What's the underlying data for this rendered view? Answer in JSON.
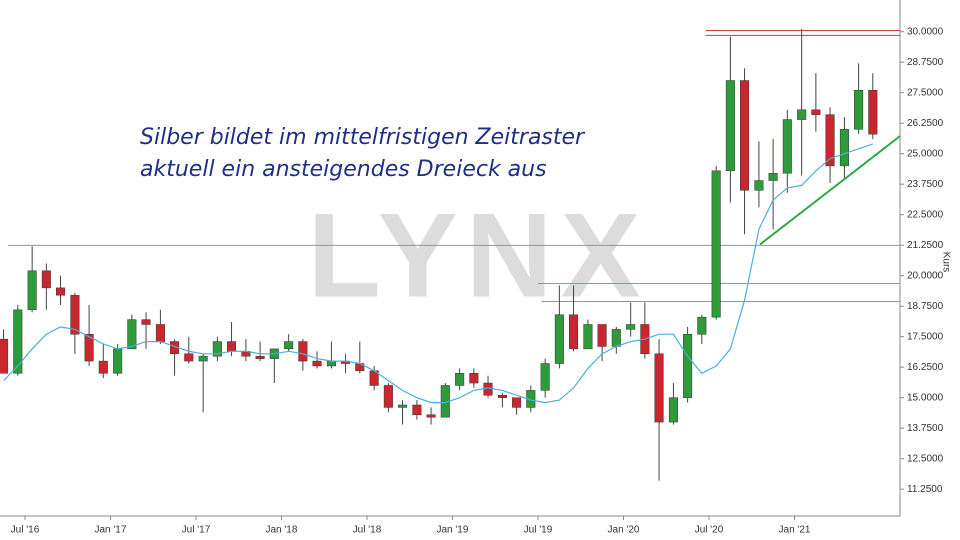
{
  "chart_data": {
    "type": "candlestick",
    "watermark": "LYNX",
    "annotation": [
      "Silber bildet im mittelfristigen Zeitraster",
      "aktuell ein ansteigendes Dreieck aus"
    ],
    "y_label": "Kurs",
    "ylim": [
      10.15,
      31.3
    ],
    "xlim": [
      2016.354,
      2021.617
    ],
    "yticks": [
      {
        "value": 11.25,
        "label": "11.2500"
      },
      {
        "value": 12.5,
        "label": "12.5000"
      },
      {
        "value": 13.75,
        "label": "13.7500"
      },
      {
        "value": 15,
        "label": "15.0000"
      },
      {
        "value": 16.25,
        "label": "16.2500"
      },
      {
        "value": 17.5,
        "label": "17.5000"
      },
      {
        "value": 18.75,
        "label": "18.7500"
      },
      {
        "value": 20,
        "label": "20.0000"
      },
      {
        "value": 21.25,
        "label": "21.2500"
      },
      {
        "value": 22.5,
        "label": "22.5000"
      },
      {
        "value": 23.75,
        "label": "23.7500"
      },
      {
        "value": 25,
        "label": "25.0000"
      },
      {
        "value": 26.25,
        "label": "26.2500"
      },
      {
        "value": 27.5,
        "label": "27.5000"
      },
      {
        "value": 28.75,
        "label": "28.7500"
      },
      {
        "value": 30,
        "label": "30.0000"
      }
    ],
    "xticks": [
      {
        "value": 2016.5,
        "label": "Jul '16"
      },
      {
        "value": 2017.0,
        "label": "Jan '17"
      },
      {
        "value": 2017.5,
        "label": "Jul '17"
      },
      {
        "value": 2018.0,
        "label": "Jan '18"
      },
      {
        "value": 2018.5,
        "label": "Jul '18"
      },
      {
        "value": 2019.0,
        "label": "Jan '19"
      },
      {
        "value": 2019.5,
        "label": "Jul '19"
      },
      {
        "value": 2020.0,
        "label": "Jan '20"
      },
      {
        "value": 2020.5,
        "label": "Jul '20"
      },
      {
        "value": 2021.0,
        "label": "Jan '21"
      }
    ],
    "up_color": "#2e9b3a",
    "down_color": "#c8282d",
    "x": [
      2016.375,
      2016.458,
      2016.542,
      2016.625,
      2016.708,
      2016.792,
      2016.875,
      2016.958,
      2017.042,
      2017.125,
      2017.208,
      2017.292,
      2017.375,
      2017.458,
      2017.542,
      2017.625,
      2017.708,
      2017.792,
      2017.875,
      2017.958,
      2018.042,
      2018.125,
      2018.208,
      2018.292,
      2018.375,
      2018.458,
      2018.542,
      2018.625,
      2018.708,
      2018.792,
      2018.875,
      2018.958,
      2019.042,
      2019.125,
      2019.208,
      2019.292,
      2019.375,
      2019.458,
      2019.542,
      2019.625,
      2019.708,
      2019.792,
      2019.875,
      2019.958,
      2020.042,
      2020.125,
      2020.208,
      2020.292,
      2020.375,
      2020.458,
      2020.542,
      2020.625,
      2020.708,
      2020.792,
      2020.875,
      2020.958,
      2021.042,
      2021.125,
      2021.208,
      2021.292,
      2021.375,
      2021.458
    ],
    "open": [
      17.4,
      16.0,
      18.6,
      20.2,
      19.5,
      19.2,
      17.6,
      16.5,
      16.0,
      17.0,
      18.2,
      18.0,
      17.3,
      16.8,
      16.5,
      16.7,
      17.3,
      16.9,
      16.7,
      16.6,
      17.0,
      17.3,
      16.5,
      16.3,
      16.5,
      16.4,
      16.1,
      15.5,
      14.6,
      14.7,
      14.3,
      14.2,
      15.5,
      16.0,
      15.6,
      15.1,
      15.0,
      14.6,
      15.3,
      16.4,
      18.4,
      17.0,
      18.0,
      17.1,
      17.8,
      18.0,
      16.8,
      14.0,
      15.0,
      17.6,
      18.3,
      24.3,
      28.0,
      23.5,
      23.9,
      24.2,
      26.4,
      26.8,
      26.6,
      24.5,
      26.0,
      27.6
    ],
    "high": [
      17.8,
      18.8,
      21.2,
      20.5,
      20.0,
      19.3,
      18.8,
      17.2,
      17.2,
      18.4,
      18.5,
      18.6,
      17.4,
      17.5,
      16.8,
      17.5,
      18.1,
      17.4,
      17.3,
      17.0,
      17.6,
      17.4,
      16.9,
      17.3,
      16.8,
      17.3,
      16.3,
      15.6,
      14.9,
      14.9,
      14.6,
      15.6,
      16.2,
      16.2,
      15.9,
      15.2,
      15.0,
      15.5,
      16.6,
      19.6,
      19.6,
      18.2,
      18.0,
      17.9,
      18.9,
      18.9,
      17.4,
      15.6,
      17.9,
      18.4,
      24.5,
      29.8,
      28.5,
      25.5,
      25.6,
      26.8,
      30.1,
      28.3,
      26.9,
      26.5,
      28.7,
      28.3
    ],
    "low": [
      16.0,
      15.9,
      18.5,
      18.6,
      18.8,
      16.8,
      16.3,
      15.8,
      15.9,
      17.0,
      17.0,
      17.2,
      15.9,
      16.4,
      14.4,
      16.5,
      16.7,
      16.5,
      16.5,
      15.6,
      16.9,
      16.1,
      16.2,
      16.2,
      16.0,
      16.0,
      15.3,
      14.4,
      13.9,
      14.1,
      13.9,
      14.2,
      15.3,
      15.4,
      15.0,
      14.6,
      14.3,
      14.4,
      15.0,
      16.2,
      16.9,
      17.0,
      16.5,
      16.8,
      17.5,
      16.6,
      11.6,
      13.9,
      14.8,
      17.2,
      18.2,
      23.0,
      21.7,
      22.8,
      21.9,
      23.4,
      24.1,
      25.9,
      23.8,
      24.0,
      25.8,
      25.6
    ],
    "close": [
      16.0,
      18.6,
      20.2,
      19.5,
      19.2,
      17.6,
      16.5,
      16.0,
      17.0,
      18.2,
      18.0,
      17.3,
      16.8,
      16.5,
      16.7,
      17.3,
      16.9,
      16.7,
      16.6,
      17.0,
      17.3,
      16.5,
      16.3,
      16.5,
      16.4,
      16.1,
      15.5,
      14.6,
      14.7,
      14.3,
      14.2,
      15.5,
      16.0,
      15.6,
      15.1,
      15.0,
      14.6,
      15.3,
      16.4,
      18.4,
      17.0,
      18.0,
      17.1,
      17.8,
      18.0,
      16.8,
      14.0,
      15.0,
      17.6,
      18.3,
      24.3,
      28.0,
      23.5,
      23.9,
      24.2,
      26.4,
      26.8,
      26.6,
      24.5,
      26.0,
      27.6,
      25.8
    ],
    "moving_average": {
      "color": "#49aee0",
      "values": [
        15.7,
        16.3,
        17.0,
        17.6,
        17.9,
        17.8,
        17.5,
        17.2,
        17.0,
        17.1,
        17.3,
        17.3,
        17.1,
        16.9,
        16.8,
        16.8,
        16.9,
        16.9,
        16.8,
        16.8,
        16.9,
        16.8,
        16.6,
        16.5,
        16.5,
        16.4,
        16.1,
        15.7,
        15.3,
        15.0,
        14.8,
        14.8,
        15.0,
        15.3,
        15.4,
        15.3,
        15.1,
        14.9,
        14.8,
        14.9,
        15.4,
        16.2,
        16.8,
        17.1,
        17.3,
        17.4,
        17.6,
        17.6,
        16.7,
        16.0,
        16.3,
        17.0,
        19.0,
        21.9,
        23.1,
        23.6,
        23.7,
        24.3,
        24.8,
        25.0,
        25.2,
        25.4
      ]
    },
    "levels": [
      {
        "value": 21.24,
        "from": 2016.4,
        "color": "#5cbf5c"
      },
      {
        "value": 19.68,
        "from": 2019.5,
        "color": "#5cbf5c"
      },
      {
        "value": 18.94,
        "from": 2019.52,
        "color": "#5cbf5c"
      },
      {
        "value": 30.05,
        "from": 2020.48,
        "color": "#d23c3c"
      },
      {
        "value": 29.85,
        "from": 2020.48,
        "color": "#d23c3c"
      }
    ],
    "trendline": {
      "x": [
        2020.798,
        2021.617
      ],
      "y": [
        21.28,
        25.72
      ],
      "color": "#2ea84a"
    }
  }
}
